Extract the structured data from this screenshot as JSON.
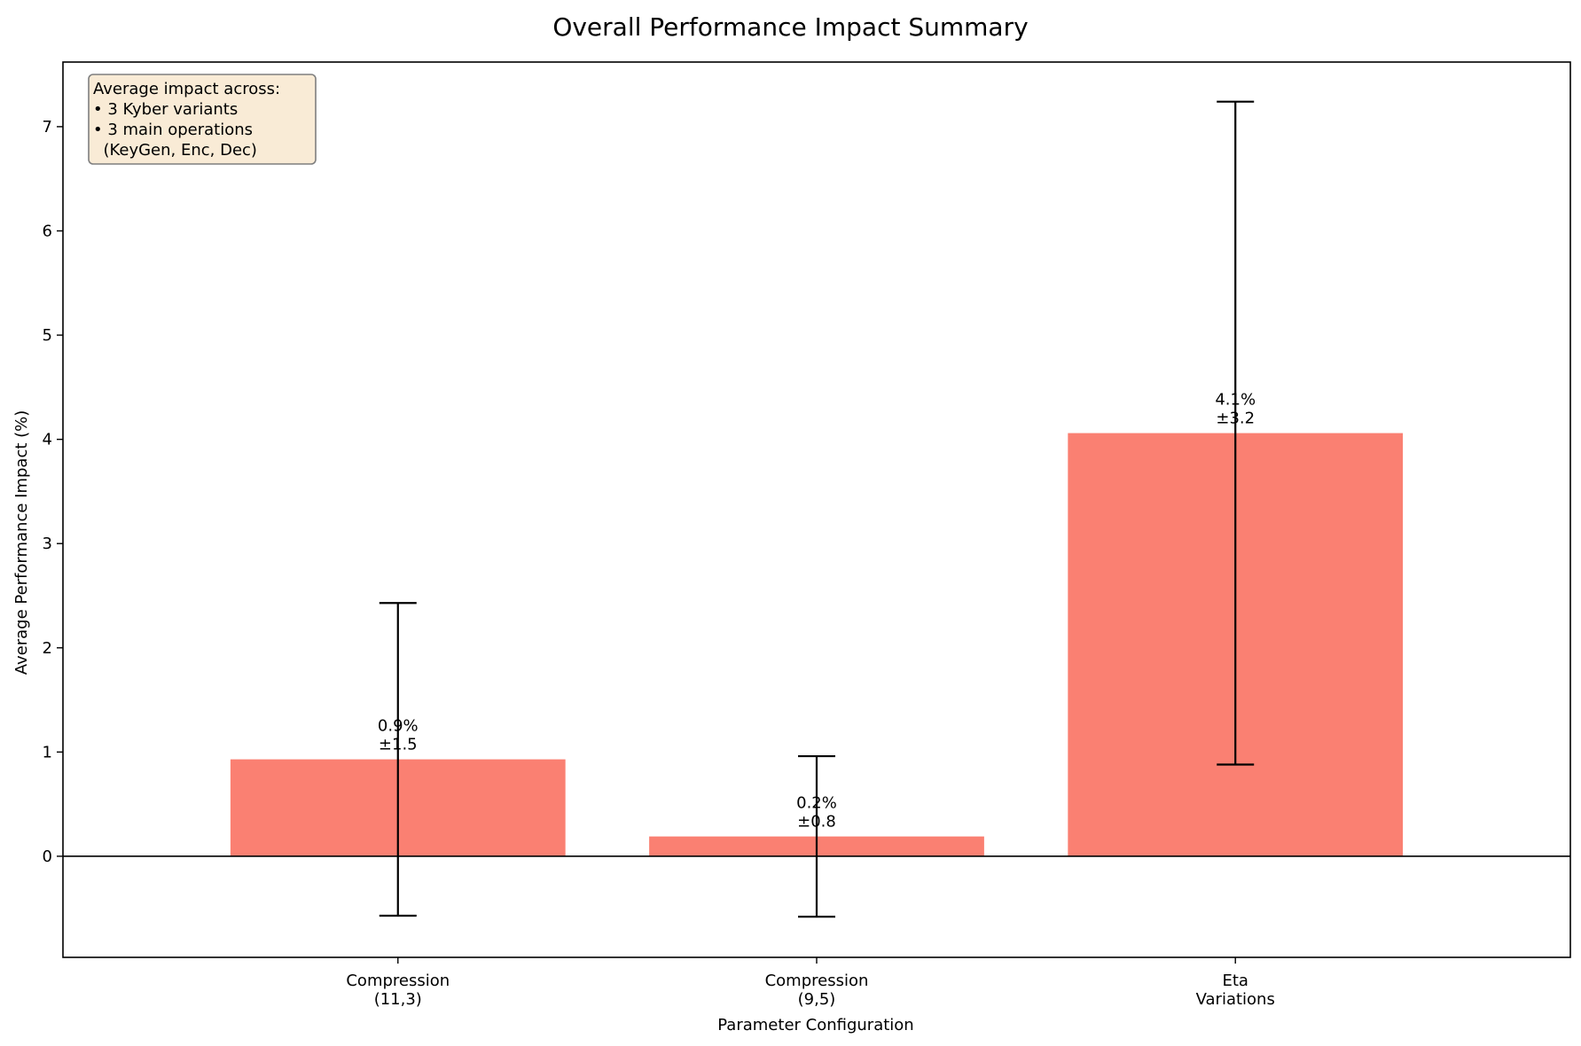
{
  "chart_data": {
    "type": "bar",
    "title": "Overall Performance Impact Summary",
    "xlabel": "Parameter Configuration",
    "ylabel": "Average Performance Impact (%)",
    "categories": [
      [
        "Compression",
        "(11,3)"
      ],
      [
        "Compression",
        "(9,5)"
      ],
      [
        "Eta",
        "Variations"
      ]
    ],
    "values": [
      0.93,
      0.19,
      4.06
    ],
    "errors": [
      1.5,
      0.77,
      3.18
    ],
    "value_labels": [
      [
        "0.9%",
        "±1.5"
      ],
      [
        "0.2%",
        "±0.8"
      ],
      [
        "4.1%",
        "±3.2"
      ]
    ],
    "ylim": [
      -0.97,
      7.62
    ],
    "yticks": [
      0,
      1,
      2,
      3,
      4,
      5,
      6,
      7
    ],
    "bar_color": "#fa8072",
    "grid": false,
    "zero_line": true,
    "annotation": {
      "lines": [
        "Average impact across:",
        "• 3 Kyber variants",
        "• 3 main operations",
        "  (KeyGen, Enc, Dec)"
      ],
      "background": "#f9ebd6",
      "border": "#7f7f7f"
    }
  }
}
